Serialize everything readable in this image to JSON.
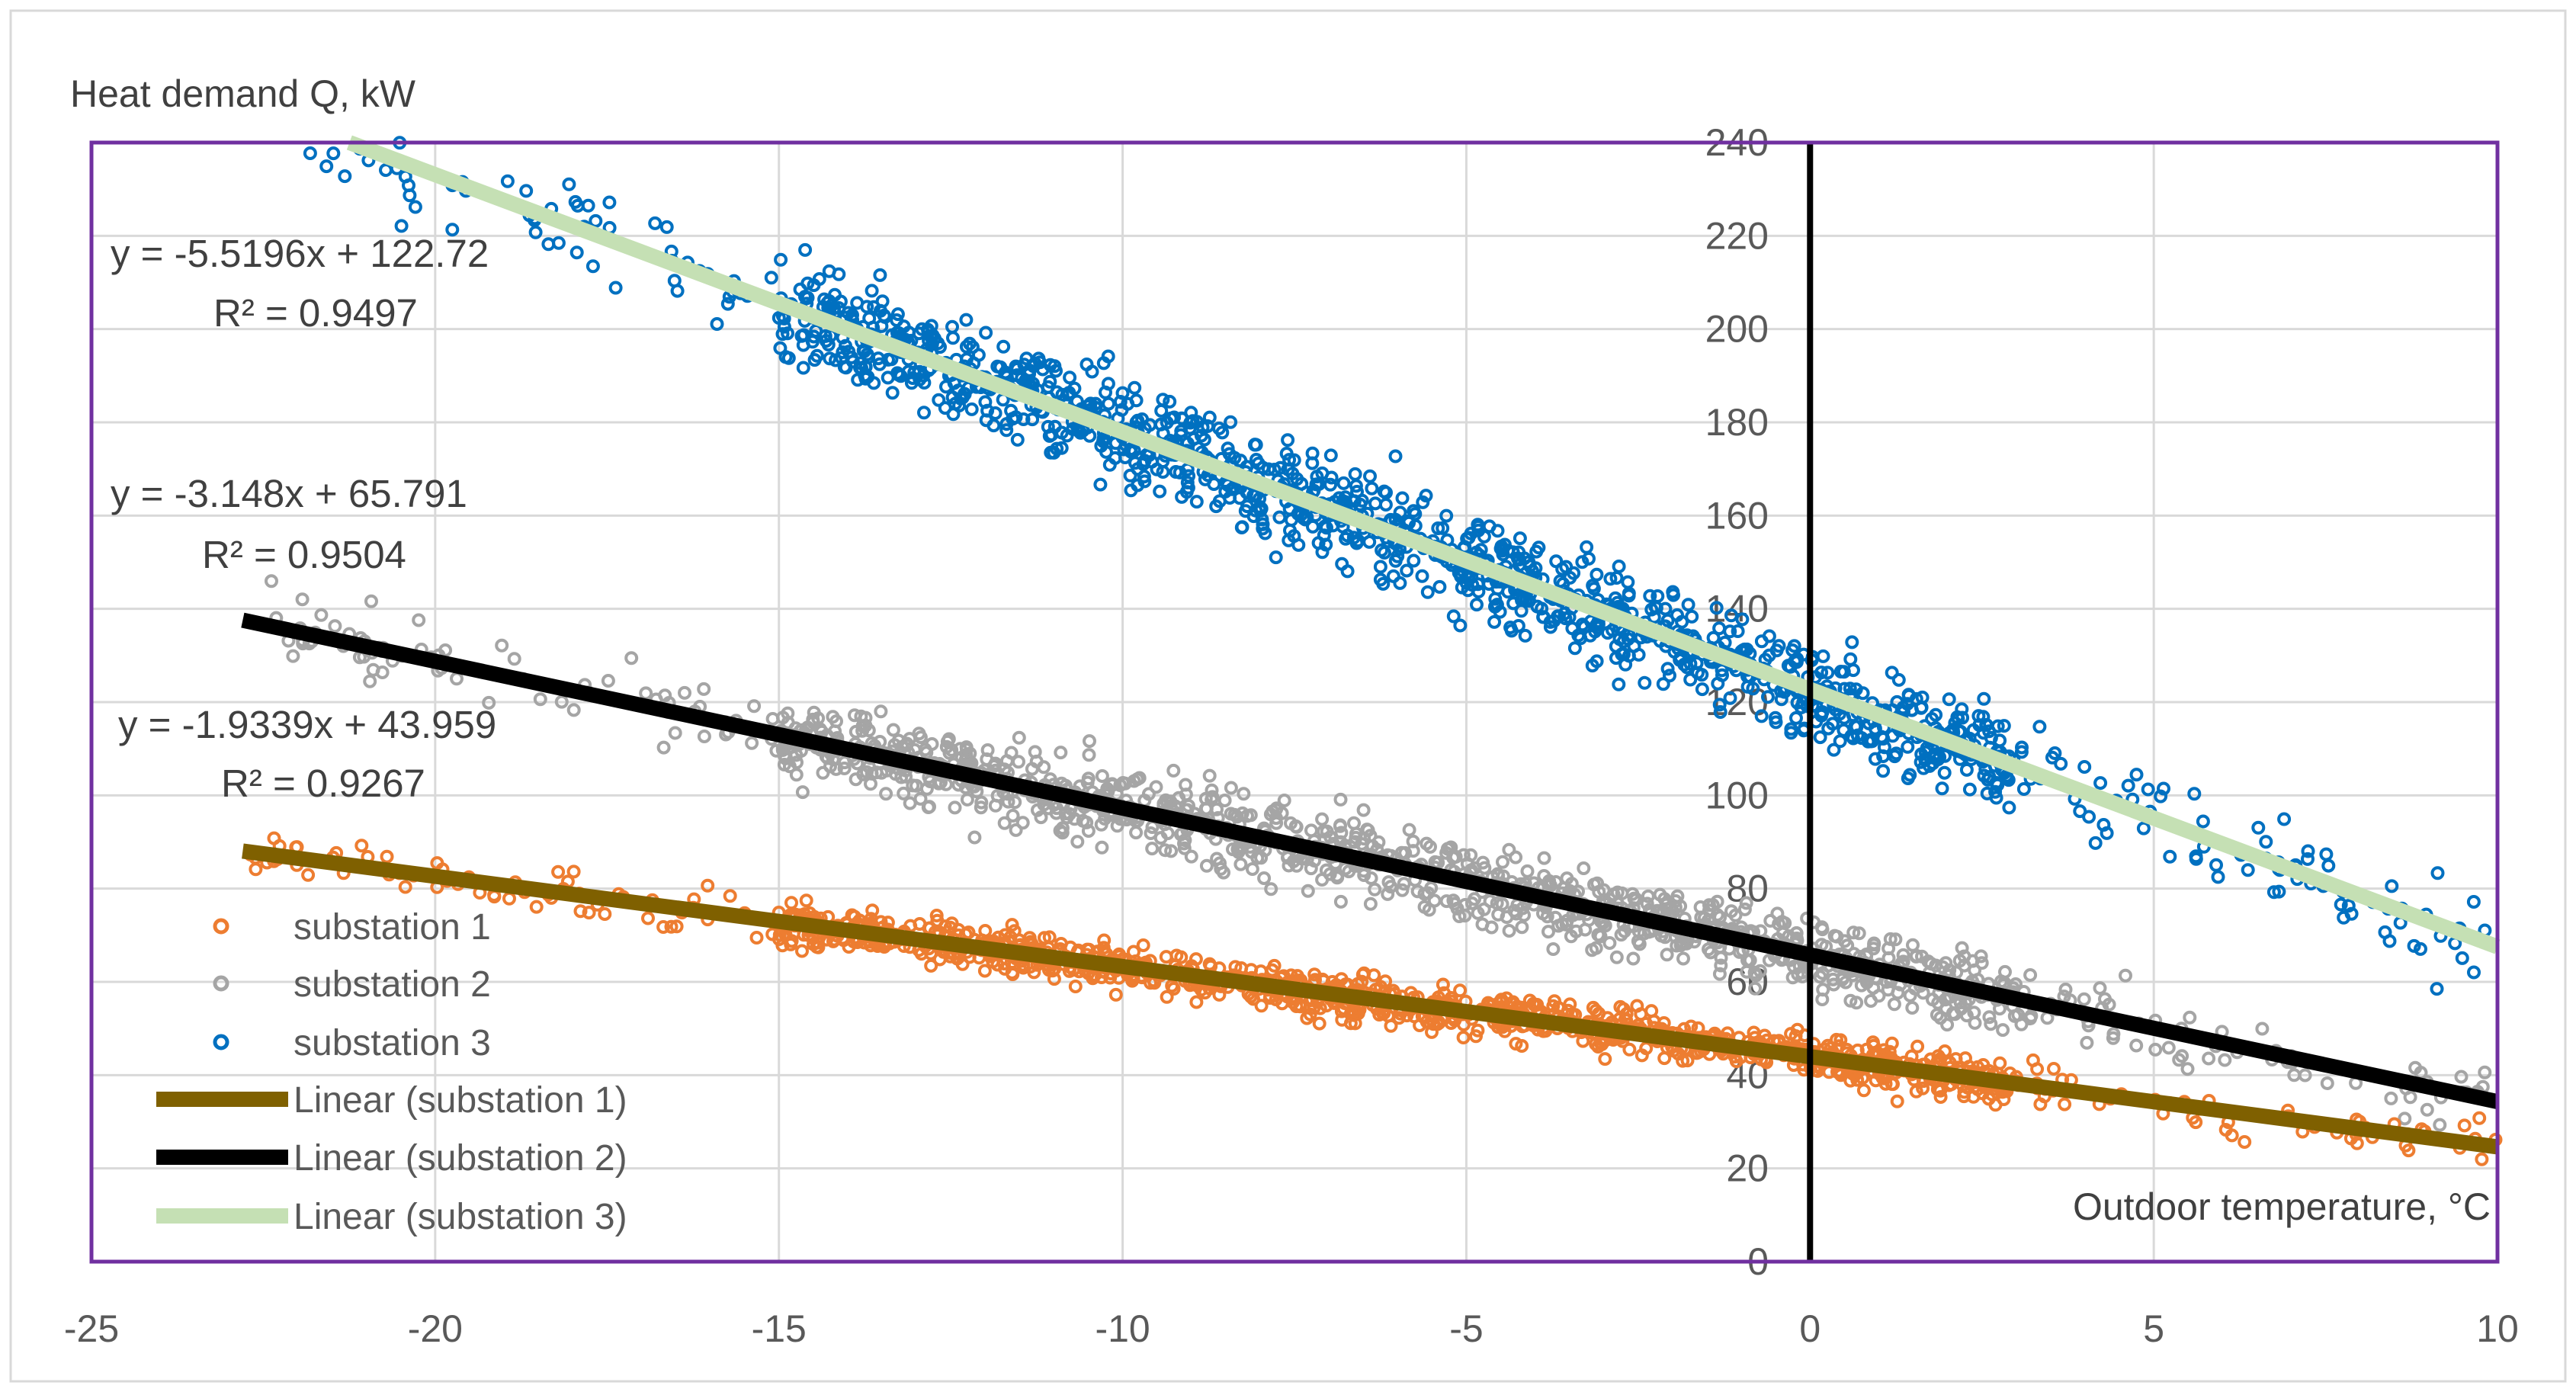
{
  "chart_data": {
    "type": "scatter",
    "title": "",
    "ylabel": "Heat demand Q, kW",
    "xlabel": "Outdoor temperature, °C",
    "xlim": [
      -25,
      10
    ],
    "ylim": [
      0,
      240
    ],
    "x_ticks": [
      -25,
      -20,
      -15,
      -10,
      -5,
      0,
      5,
      10
    ],
    "y_ticks": [
      0,
      20,
      40,
      60,
      80,
      100,
      120,
      140,
      160,
      180,
      200,
      220,
      240
    ],
    "x_tick_labels": [
      "-25",
      "-20",
      "-15",
      "-10",
      "-5",
      "0",
      "5",
      "10"
    ],
    "y_tick_labels": [
      "0",
      "20",
      "40",
      "60",
      "80",
      "100",
      "120",
      "140",
      "160",
      "180",
      "200",
      "220",
      "240"
    ],
    "grid": true,
    "legend_position": "bottom-left",
    "colors": {
      "substation_1": "#ED7D31",
      "substation_2": "#A5A5A5",
      "substation_3": "#0070C0",
      "trend_1": "#7F6000",
      "trend_2": "#000000",
      "trend_3": "#C5E0B4",
      "plot_border": "#7030A0",
      "grid": "#D9D9D9"
    },
    "series": [
      {
        "name": "substation 1",
        "marker": "circle-open",
        "x_range": [
          -22.8,
          10
        ],
        "trend": {
          "slope": -1.9339,
          "intercept": 43.959
        },
        "noise": 4,
        "n_points": 1200
      },
      {
        "name": "substation 2",
        "marker": "circle-open",
        "x_range": [
          -22.8,
          10
        ],
        "trend": {
          "slope": -3.148,
          "intercept": 65.791
        },
        "noise": 7,
        "n_points": 1200
      },
      {
        "name": "substation 3",
        "marker": "circle-open",
        "x_range": [
          -22.8,
          10
        ],
        "trend": {
          "slope": -5.5196,
          "intercept": 122.72
        },
        "noise": 9,
        "n_points": 1400
      }
    ],
    "trendlines": [
      {
        "name": "Linear (substation 1)",
        "slope": -1.9339,
        "intercept": 43.959,
        "x_range": [
          -22.8,
          10
        ]
      },
      {
        "name": "Linear (substation 2)",
        "slope": -3.148,
        "intercept": 65.791,
        "x_range": [
          -22.8,
          10
        ]
      },
      {
        "name": "Linear (substation 3)",
        "slope": -5.5196,
        "intercept": 122.72,
        "x_range": [
          -22.8,
          10
        ]
      }
    ],
    "annotations": [
      {
        "equation": "y = -5.5196x + 122.72",
        "r2": "R² = 0.9497"
      },
      {
        "equation": "y = -3.148x + 65.791",
        "r2": "R² = 0.9504"
      },
      {
        "equation": "y = -1.9339x + 43.959",
        "r2": "R² = 0.9267"
      }
    ],
    "legend": [
      {
        "label": "substation 1",
        "kind": "marker"
      },
      {
        "label": "substation 2",
        "kind": "marker"
      },
      {
        "label": "substation 3",
        "kind": "marker"
      },
      {
        "label": "Linear (substation 1)",
        "kind": "line"
      },
      {
        "label": "Linear (substation 2)",
        "kind": "line"
      },
      {
        "label": "Linear (substation 3)",
        "kind": "line"
      }
    ]
  }
}
